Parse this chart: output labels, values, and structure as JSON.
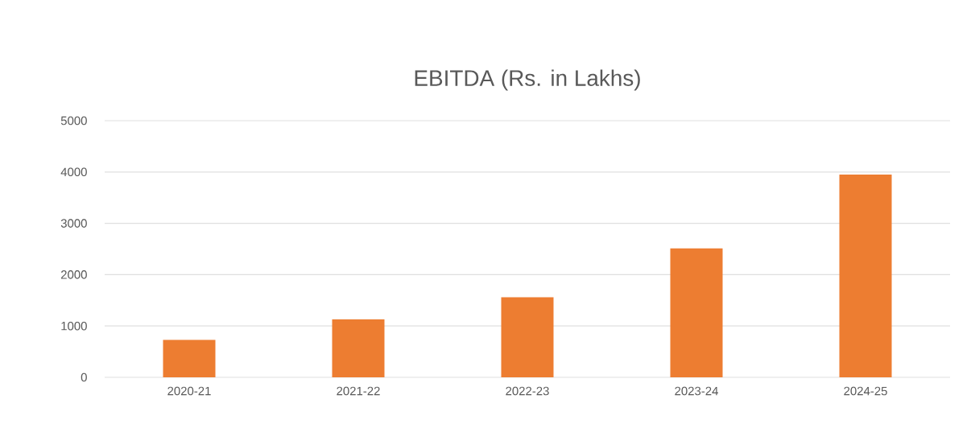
{
  "chart_data": {
    "type": "bar",
    "title": "EBITDA (Rs. in Lakhs)",
    "categories": [
      "2020-21",
      "2021-22",
      "2022-23",
      "2023-24",
      "2024-25"
    ],
    "values": [
      730,
      1130,
      1560,
      2510,
      3950
    ],
    "color": "#ed7d31",
    "ylim": [
      0,
      5000
    ],
    "yticks": [
      0,
      1000,
      2000,
      3000,
      4000,
      5000
    ],
    "grid": "y"
  }
}
